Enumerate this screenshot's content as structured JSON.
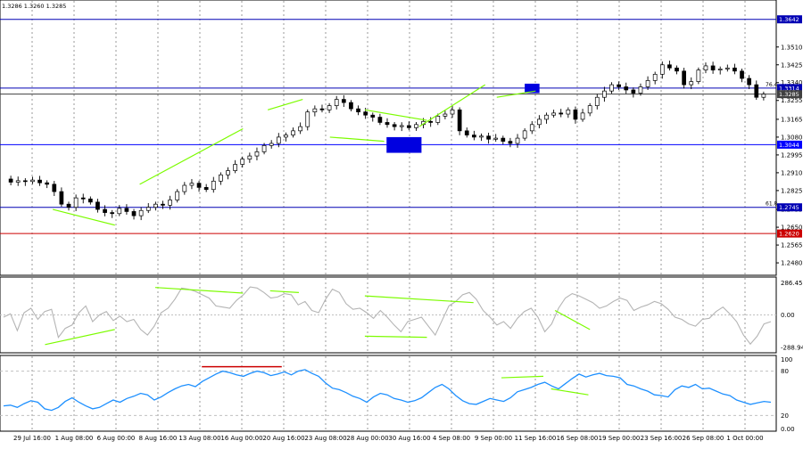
{
  "header": {
    "ohlc_text": "1.3286 1.3260 1.3285"
  },
  "chart_data": [
    {
      "type": "candlestick",
      "title": "",
      "ylim": [
        1.2425,
        1.373
      ],
      "price_ticks": [
        "1.3510",
        "1.3425",
        "1.3340",
        "1.3255",
        "1.3165",
        "1.3080",
        "1.2995",
        "1.2910",
        "1.2825",
        "1.2735",
        "1.2650",
        "1.2565",
        "1.2480"
      ],
      "x_labels": [
        "29 Jul 16:00",
        "1 Aug 08:00",
        "6 Aug 00:00",
        "8 Aug 16:00",
        "13 Aug 08:00",
        "16 Aug 00:00",
        "20 Aug 16:00",
        "23 Aug 08:00",
        "28 Aug 00:00",
        "30 Aug 16:00",
        "4 Sep 08:00",
        "9 Sep 00:00",
        "11 Sep 16:00",
        "16 Sep 08:00",
        "19 Sep 00:00",
        "23 Sep 16:00",
        "26 Sep 08:00",
        "1 Oct 00:00"
      ],
      "close_path": [
        1.288,
        1.2865,
        1.2872,
        1.2868,
        1.2875,
        1.2862,
        1.2855,
        1.282,
        1.276,
        1.2745,
        1.279,
        1.2785,
        1.277,
        1.2735,
        1.272,
        1.2715,
        1.274,
        1.2725,
        1.2705,
        1.273,
        1.2745,
        1.276,
        1.2755,
        1.278,
        1.282,
        1.285,
        1.286,
        1.284,
        1.283,
        1.287,
        1.29,
        1.292,
        1.295,
        1.2975,
        1.299,
        1.301,
        1.304,
        1.305,
        1.308,
        1.309,
        1.311,
        1.313,
        1.32,
        1.3215,
        1.321,
        1.323,
        1.326,
        1.3245,
        1.3215,
        1.32,
        1.3185,
        1.3175,
        1.315,
        1.314,
        1.313,
        1.3135,
        1.3125,
        1.314,
        1.3155,
        1.315,
        1.318,
        1.319,
        1.321,
        1.311,
        1.309,
        1.308,
        1.3085,
        1.307,
        1.3075,
        1.306,
        1.305,
        1.3075,
        1.311,
        1.314,
        1.3165,
        1.3185,
        1.3195,
        1.319,
        1.321,
        1.3165,
        1.3195,
        1.323,
        1.327,
        1.33,
        1.333,
        1.332,
        1.3305,
        1.329,
        1.332,
        1.335,
        1.338,
        1.3425,
        1.341,
        1.3395,
        1.333,
        1.3345,
        1.34,
        1.342,
        1.34,
        1.3405,
        1.341,
        1.3395,
        1.336,
        1.333,
        1.327,
        1.3285
      ],
      "levels": [
        {
          "price": 1.3642,
          "label": "1.3642",
          "color": "#0000b4"
        },
        {
          "price": 1.3314,
          "label": "1.3314",
          "color": "#0000b4",
          "fib": "76.4"
        },
        {
          "price": 1.3285,
          "label": "1.3285",
          "color": "#404040"
        },
        {
          "price": 1.3044,
          "label": "1.3044",
          "color": "#0000ff"
        },
        {
          "price": 1.2745,
          "label": "1.2745",
          "color": "#0000b4",
          "fib": "61.8"
        },
        {
          "price": 1.262,
          "label": "1.2620",
          "color": "#cc0000"
        }
      ],
      "trend_lines": [
        [
          [
            0.068,
            1.2735
          ],
          [
            0.148,
            1.266
          ]
        ],
        [
          [
            0.18,
            1.2855
          ],
          [
            0.313,
            1.312
          ]
        ],
        [
          [
            0.345,
            1.321
          ],
          [
            0.39,
            1.326
          ]
        ],
        [
          [
            0.47,
            1.321
          ],
          [
            0.55,
            1.316
          ]
        ],
        [
          [
            0.425,
            1.308
          ],
          [
            0.495,
            1.306
          ]
        ],
        [
          [
            0.54,
            1.313
          ],
          [
            0.625,
            1.333
          ]
        ],
        [
          [
            0.64,
            1.327
          ],
          [
            0.69,
            1.33
          ]
        ]
      ],
      "zones": [
        {
          "x0": 0.498,
          "x1": 0.543,
          "y0": 1.308,
          "y1": 1.3005,
          "color": "#0000e0"
        },
        {
          "x0": 0.676,
          "x1": 0.695,
          "y0": 1.3335,
          "y1": 1.329,
          "color": "#0000e0"
        }
      ]
    },
    {
      "type": "line",
      "title": "",
      "ylim": [
        -330,
        330
      ],
      "tick_labels": [
        "286.455",
        "0.00",
        "-288.943"
      ],
      "values": [
        -20,
        10,
        -140,
        20,
        60,
        -40,
        30,
        50,
        -200,
        -120,
        -90,
        20,
        80,
        -60,
        0,
        30,
        -50,
        -10,
        -60,
        -40,
        -130,
        -180,
        -100,
        20,
        60,
        140,
        240,
        230,
        210,
        180,
        150,
        80,
        70,
        60,
        130,
        180,
        250,
        240,
        200,
        150,
        160,
        190,
        180,
        90,
        120,
        40,
        20,
        140,
        230,
        200,
        100,
        50,
        60,
        20,
        -30,
        40,
        -20,
        -90,
        -150,
        -60,
        -40,
        -20,
        -100,
        -180,
        -50,
        80,
        120,
        180,
        200,
        140,
        40,
        -20,
        -90,
        -60,
        -120,
        -30,
        30,
        60,
        -20,
        -150,
        -80,
        60,
        150,
        190,
        170,
        140,
        110,
        60,
        80,
        120,
        150,
        130,
        40,
        70,
        90,
        120,
        100,
        50,
        -20,
        -40,
        -80,
        -100,
        -40,
        -30,
        30,
        70,
        10,
        -60,
        -180,
        -260,
        -190,
        -80,
        -60
      ],
      "divergence_lines": [
        [
          [
            0.058,
            -265
          ],
          [
            0.148,
            -130
          ]
        ],
        [
          [
            0.2,
            245
          ],
          [
            0.313,
            195
          ]
        ],
        [
          [
            0.348,
            215
          ],
          [
            0.385,
            200
          ]
        ],
        [
          [
            0.47,
            170
          ],
          [
            0.61,
            110
          ]
        ],
        [
          [
            0.47,
            -190
          ],
          [
            0.55,
            -200
          ]
        ],
        [
          [
            0.715,
            40
          ],
          [
            0.76,
            -130
          ]
        ]
      ]
    },
    {
      "type": "line",
      "title": "",
      "ylim": [
        0,
        100
      ],
      "tick_labels": [
        "100",
        "80",
        "20",
        "0.00"
      ],
      "values": [
        33,
        34,
        31,
        36,
        40,
        38,
        29,
        27,
        31,
        39,
        44,
        38,
        33,
        29,
        31,
        36,
        41,
        38,
        43,
        46,
        50,
        48,
        41,
        45,
        51,
        56,
        60,
        62,
        59,
        66,
        71,
        76,
        80,
        78,
        75,
        73,
        77,
        80,
        78,
        74,
        76,
        79,
        75,
        80,
        82,
        77,
        73,
        64,
        57,
        55,
        51,
        46,
        43,
        38,
        45,
        50,
        48,
        43,
        41,
        38,
        40,
        44,
        51,
        58,
        62,
        56,
        47,
        40,
        36,
        35,
        39,
        43,
        41,
        39,
        44,
        52,
        55,
        58,
        62,
        65,
        60,
        56,
        63,
        70,
        76,
        72,
        75,
        77,
        74,
        73,
        71,
        62,
        60,
        56,
        53,
        48,
        47,
        45,
        55,
        60,
        58,
        62,
        56,
        57,
        53,
        49,
        47,
        41,
        38,
        35,
        37,
        39,
        38
      ],
      "ref_lines": [
        80,
        20
      ],
      "highlight_line": [
        [
          0.26,
          86
        ],
        [
          0.363,
          86
        ]
      ],
      "divergence_lines": [
        [
          [
            0.646,
            71
          ],
          [
            0.7,
            73
          ]
        ],
        [
          [
            0.71,
            56
          ],
          [
            0.758,
            48
          ]
        ]
      ]
    }
  ],
  "colors": {
    "accent_blue": "#0000b4",
    "red": "#cc0000",
    "green": "#7cfc00",
    "oscillator": "#b4b4b4",
    "rsi": "#1e90ff"
  }
}
